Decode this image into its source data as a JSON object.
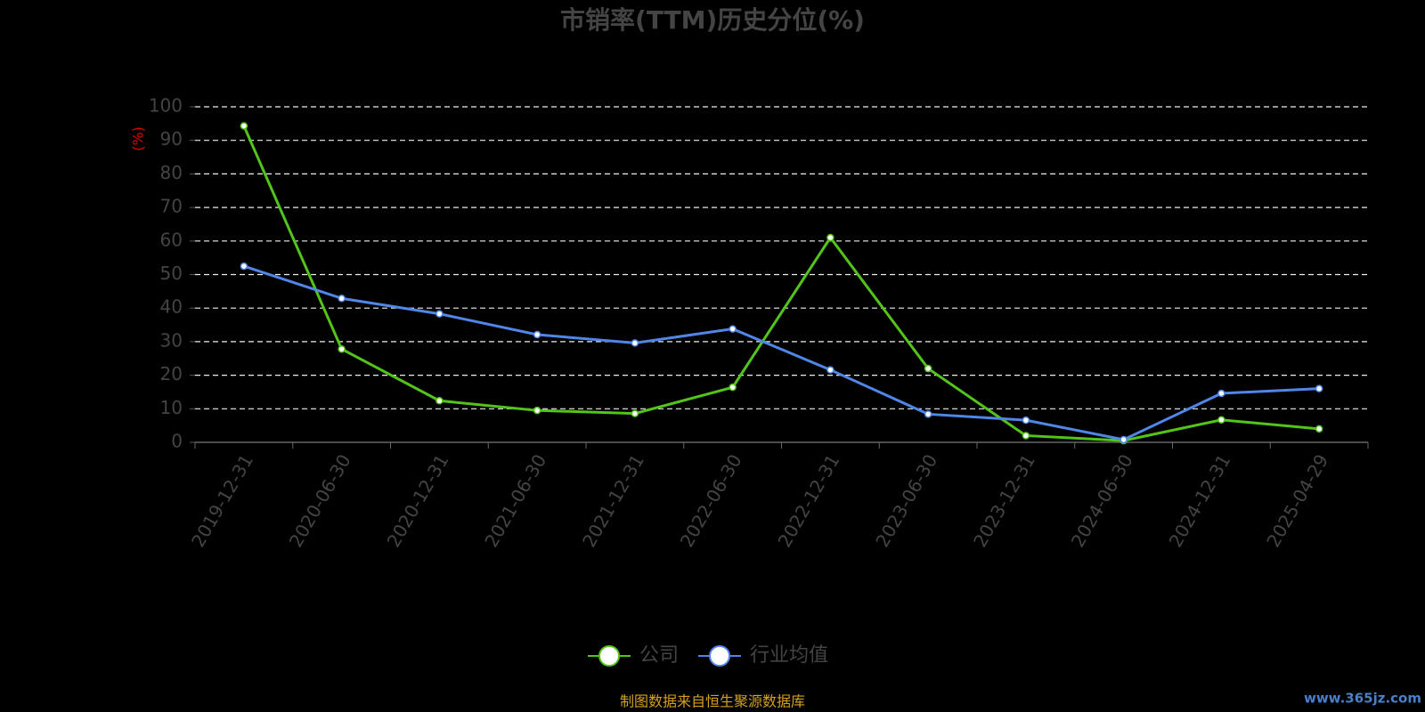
{
  "chart_data": {
    "type": "line",
    "title": "市销率(TTM)历史分位(%)",
    "y_label": "(%)",
    "categories": [
      "2019-12-31",
      "2020-06-30",
      "2020-12-31",
      "2021-06-30",
      "2021-12-31",
      "2022-06-30",
      "2022-12-31",
      "2023-06-30",
      "2023-12-31",
      "2024-06-30",
      "2024-12-31",
      "2025-04-29"
    ],
    "series": [
      {
        "name": "公司",
        "color": "#52c41a",
        "values": [
          94.3,
          27.8,
          12.4,
          9.5,
          8.6,
          16.4,
          61.0,
          22.0,
          2.0,
          0.5,
          6.7,
          4.0
        ]
      },
      {
        "name": "行业均值",
        "color": "#4f86e8",
        "values": [
          52.5,
          42.9,
          38.3,
          32.1,
          29.6,
          33.8,
          21.6,
          8.4,
          6.6,
          0.8,
          14.6,
          16.0
        ]
      }
    ],
    "ylim": [
      0,
      100
    ],
    "yticks": [
      0,
      10,
      20,
      30,
      40,
      50,
      60,
      70,
      80,
      90,
      100
    ],
    "grid": true,
    "legend": "bottom",
    "source": "制图数据来自恒生聚源数据库",
    "watermark": "www.365jz.com"
  }
}
